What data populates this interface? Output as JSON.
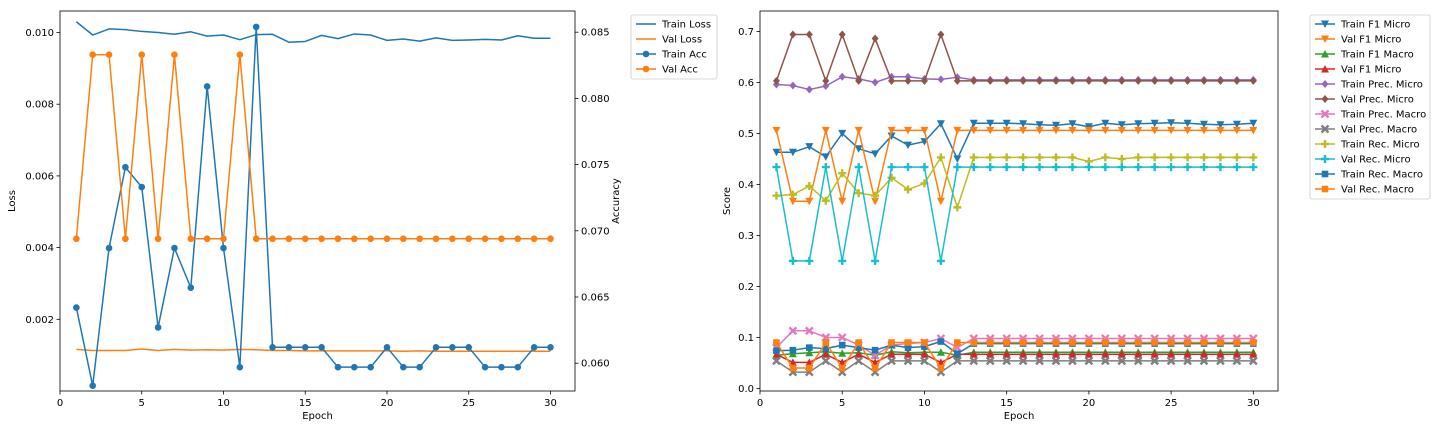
{
  "chart_data": [
    {
      "type": "line",
      "xlabel": "Epoch",
      "ylabel": "Loss",
      "y2label": "Accuracy",
      "xlim": [
        0,
        31.5
      ],
      "ylim": [
        0.0,
        0.0106
      ],
      "y2lim": [
        0.0579,
        0.0866
      ],
      "xticks": [
        0,
        5,
        10,
        15,
        20,
        25,
        30
      ],
      "yticks": [
        0.002,
        0.004,
        0.006,
        0.008,
        0.01
      ],
      "ytick_labels": [
        "0.002",
        "0.004",
        "0.006",
        "0.008",
        "0.010"
      ],
      "y2ticks": [
        0.06,
        0.065,
        0.07,
        0.075,
        0.08,
        0.085
      ],
      "y2tick_labels": [
        "0.060",
        "0.065",
        "0.070",
        "0.075",
        "0.080",
        "0.085"
      ],
      "grid": false,
      "legend_position": "outside top-right",
      "x": [
        1,
        2,
        3,
        4,
        5,
        6,
        7,
        8,
        9,
        10,
        11,
        12,
        13,
        14,
        15,
        16,
        17,
        18,
        19,
        20,
        21,
        22,
        23,
        24,
        25,
        26,
        27,
        28,
        29,
        30
      ],
      "series": [
        {
          "name": "Train Loss",
          "axis": "left",
          "color": "#1f77b4",
          "marker": "none",
          "values": [
            0.0103,
            0.00993,
            0.0101,
            0.01008,
            0.01003,
            0.01,
            0.00995,
            0.01002,
            0.0099,
            0.00993,
            0.0098,
            0.00994,
            0.00995,
            0.00973,
            0.00975,
            0.00992,
            0.00983,
            0.00996,
            0.00993,
            0.00978,
            0.00982,
            0.00976,
            0.00985,
            0.00978,
            0.00979,
            0.00981,
            0.00979,
            0.00991,
            0.00984,
            0.00984
          ]
        },
        {
          "name": "Val Loss",
          "axis": "left",
          "color": "#ff7f0e",
          "marker": "none",
          "values": [
            0.00116,
            0.00113,
            0.00113,
            0.00113,
            0.00117,
            0.00113,
            0.00116,
            0.00114,
            0.00115,
            0.00114,
            0.00116,
            0.00115,
            0.00113,
            0.00113,
            0.00112,
            0.00112,
            0.00112,
            0.00112,
            0.00112,
            0.00112,
            0.00111,
            0.00112,
            0.00111,
            0.00111,
            0.00111,
            0.00111,
            0.00111,
            0.00111,
            0.00111,
            0.00111
          ]
        },
        {
          "name": "Train Acc",
          "axis": "right",
          "color": "#1f77b4",
          "marker": "circle",
          "values": [
            0.0642,
            0.0583,
            0.0687,
            0.0748,
            0.0733,
            0.0627,
            0.0687,
            0.0657,
            0.0809,
            0.0687,
            0.0597,
            0.0854,
            0.0612,
            0.0612,
            0.0612,
            0.0612,
            0.0597,
            0.0597,
            0.0597,
            0.0612,
            0.0597,
            0.0597,
            0.0612,
            0.0612,
            0.0612,
            0.0597,
            0.0597,
            0.0597,
            0.0612,
            0.0612
          ]
        },
        {
          "name": "Val Acc",
          "axis": "right",
          "color": "#ff7f0e",
          "marker": "circle",
          "values": [
            0.0694,
            0.0833,
            0.0833,
            0.0694,
            0.0833,
            0.0694,
            0.0833,
            0.0694,
            0.0694,
            0.0694,
            0.0833,
            0.0694,
            0.0694,
            0.0694,
            0.0694,
            0.0694,
            0.0694,
            0.0694,
            0.0694,
            0.0694,
            0.0694,
            0.0694,
            0.0694,
            0.0694,
            0.0694,
            0.0694,
            0.0694,
            0.0694,
            0.0694,
            0.0694
          ]
        }
      ]
    },
    {
      "type": "line",
      "xlabel": "Epoch",
      "ylabel": "Score",
      "xlim": [
        0,
        31.5
      ],
      "ylim": [
        -0.005,
        0.74
      ],
      "xticks": [
        0,
        5,
        10,
        15,
        20,
        25,
        30
      ],
      "yticks": [
        0.0,
        0.1,
        0.2,
        0.3,
        0.4,
        0.5,
        0.6,
        0.7
      ],
      "ytick_labels": [
        "0.0",
        "0.1",
        "0.2",
        "0.3",
        "0.4",
        "0.5",
        "0.6",
        "0.7"
      ],
      "grid": false,
      "legend_position": "outside top-right",
      "x": [
        1,
        2,
        3,
        4,
        5,
        6,
        7,
        8,
        9,
        10,
        11,
        12,
        13,
        14,
        15,
        16,
        17,
        18,
        19,
        20,
        21,
        22,
        23,
        24,
        25,
        26,
        27,
        28,
        29,
        30
      ],
      "series": [
        {
          "name": "Train F1 Micro",
          "color": "#1f77b4",
          "marker": "triangle-down",
          "values": [
            0.463,
            0.463,
            0.474,
            0.454,
            0.5,
            0.47,
            0.46,
            0.495,
            0.477,
            0.484,
            0.519,
            0.45,
            0.52,
            0.52,
            0.52,
            0.519,
            0.517,
            0.516,
            0.519,
            0.513,
            0.52,
            0.517,
            0.519,
            0.52,
            0.521,
            0.52,
            0.518,
            0.517,
            0.518,
            0.52
          ]
        },
        {
          "name": "Val F1 Micro",
          "color": "#ff7f0e",
          "marker": "triangle-down",
          "values": [
            0.506,
            0.367,
            0.367,
            0.506,
            0.367,
            0.506,
            0.367,
            0.506,
            0.506,
            0.506,
            0.367,
            0.506,
            0.506,
            0.506,
            0.506,
            0.506,
            0.506,
            0.506,
            0.506,
            0.506,
            0.506,
            0.506,
            0.506,
            0.506,
            0.506,
            0.506,
            0.506,
            0.506,
            0.506,
            0.506
          ]
        },
        {
          "name": "Train F1 Macro",
          "color": "#2ca02c",
          "marker": "triangle-up",
          "values": [
            0.065,
            0.068,
            0.07,
            0.072,
            0.069,
            0.07,
            0.065,
            0.072,
            0.07,
            0.071,
            0.071,
            0.065,
            0.071,
            0.071,
            0.071,
            0.071,
            0.071,
            0.071,
            0.071,
            0.071,
            0.071,
            0.071,
            0.071,
            0.071,
            0.071,
            0.071,
            0.071,
            0.071,
            0.071,
            0.071
          ]
        },
        {
          "name": "Val F1 Micro",
          "color": "#d62728",
          "marker": "triangle-up",
          "values": [
            0.067,
            0.051,
            0.051,
            0.067,
            0.051,
            0.067,
            0.051,
            0.067,
            0.067,
            0.067,
            0.051,
            0.067,
            0.067,
            0.067,
            0.067,
            0.067,
            0.067,
            0.067,
            0.067,
            0.067,
            0.067,
            0.067,
            0.067,
            0.067,
            0.067,
            0.067,
            0.067,
            0.067,
            0.067,
            0.067
          ]
        },
        {
          "name": "Train Prec. Micro",
          "color": "#9467bd",
          "marker": "diamond",
          "values": [
            0.596,
            0.594,
            0.586,
            0.593,
            0.611,
            0.607,
            0.6,
            0.611,
            0.611,
            0.607,
            0.606,
            0.61,
            0.605,
            0.605,
            0.605,
            0.605,
            0.605,
            0.605,
            0.605,
            0.605,
            0.605,
            0.605,
            0.605,
            0.605,
            0.605,
            0.605,
            0.605,
            0.605,
            0.605,
            0.605
          ]
        },
        {
          "name": "Val Prec. Micro",
          "color": "#8c564b",
          "marker": "diamond",
          "values": [
            0.603,
            0.694,
            0.694,
            0.603,
            0.694,
            0.603,
            0.686,
            0.603,
            0.603,
            0.603,
            0.694,
            0.603,
            0.603,
            0.603,
            0.603,
            0.603,
            0.603,
            0.603,
            0.603,
            0.603,
            0.603,
            0.603,
            0.603,
            0.603,
            0.603,
            0.603,
            0.603,
            0.603,
            0.603,
            0.603
          ]
        },
        {
          "name": "Train Prec. Macro",
          "color": "#e377c2",
          "marker": "x",
          "values": [
            0.08,
            0.113,
            0.113,
            0.1,
            0.1,
            0.085,
            0.065,
            0.085,
            0.088,
            0.09,
            0.098,
            0.08,
            0.098,
            0.098,
            0.098,
            0.098,
            0.098,
            0.098,
            0.098,
            0.098,
            0.098,
            0.098,
            0.098,
            0.098,
            0.098,
            0.098,
            0.098,
            0.098,
            0.098,
            0.098
          ]
        },
        {
          "name": "Val Prec. Macro",
          "color": "#7f7f7f",
          "marker": "x",
          "values": [
            0.054,
            0.032,
            0.032,
            0.054,
            0.032,
            0.054,
            0.032,
            0.054,
            0.054,
            0.054,
            0.032,
            0.054,
            0.054,
            0.054,
            0.054,
            0.054,
            0.054,
            0.054,
            0.054,
            0.054,
            0.054,
            0.054,
            0.054,
            0.054,
            0.054,
            0.054,
            0.054,
            0.054,
            0.054,
            0.054
          ]
        },
        {
          "name": "Train Rec. Micro",
          "color": "#bcbd22",
          "marker": "plus",
          "values": [
            0.378,
            0.38,
            0.397,
            0.368,
            0.422,
            0.383,
            0.378,
            0.413,
            0.39,
            0.402,
            0.453,
            0.355,
            0.453,
            0.453,
            0.453,
            0.453,
            0.453,
            0.453,
            0.453,
            0.445,
            0.453,
            0.45,
            0.453,
            0.453,
            0.453,
            0.453,
            0.453,
            0.453,
            0.453,
            0.453
          ]
        },
        {
          "name": "Val Rec. Micro",
          "color": "#17becf",
          "marker": "plus",
          "values": [
            0.434,
            0.25,
            0.25,
            0.434,
            0.25,
            0.434,
            0.25,
            0.434,
            0.434,
            0.434,
            0.25,
            0.434,
            0.434,
            0.434,
            0.434,
            0.434,
            0.434,
            0.434,
            0.434,
            0.434,
            0.434,
            0.434,
            0.434,
            0.434,
            0.434,
            0.434,
            0.434,
            0.434,
            0.434,
            0.434
          ]
        },
        {
          "name": "Train Rec. Macro",
          "color": "#1f77b4",
          "marker": "square",
          "values": [
            0.074,
            0.075,
            0.08,
            0.078,
            0.085,
            0.08,
            0.075,
            0.085,
            0.08,
            0.082,
            0.092,
            0.068,
            0.088,
            0.088,
            0.088,
            0.088,
            0.088,
            0.088,
            0.088,
            0.088,
            0.088,
            0.088,
            0.088,
            0.088,
            0.088,
            0.088,
            0.088,
            0.088,
            0.088,
            0.088
          ]
        },
        {
          "name": "Val Rec. Macro",
          "color": "#ff7f0e",
          "marker": "square",
          "values": [
            0.09,
            0.04,
            0.04,
            0.09,
            0.04,
            0.09,
            0.04,
            0.09,
            0.09,
            0.09,
            0.04,
            0.09,
            0.09,
            0.09,
            0.09,
            0.09,
            0.09,
            0.09,
            0.09,
            0.09,
            0.09,
            0.09,
            0.09,
            0.09,
            0.09,
            0.09,
            0.09,
            0.09,
            0.09,
            0.09
          ]
        }
      ]
    }
  ]
}
